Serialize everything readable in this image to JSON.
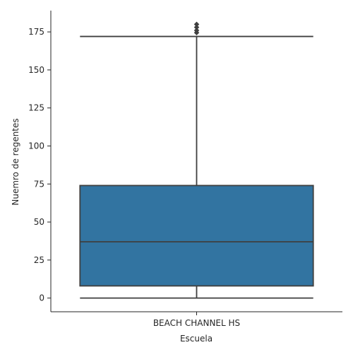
{
  "chart_data": {
    "type": "box",
    "title": "",
    "xlabel": "Escuela",
    "ylabel": "Nuemro de regentes",
    "categories": [
      "BEACH CHANNEL HS"
    ],
    "boxes": [
      {
        "category": "BEACH CHANNEL HS",
        "whisker_low": 0,
        "q1": 8,
        "median": 37,
        "q3": 74,
        "whisker_high": 172,
        "outliers": [
          174.5,
          176,
          178,
          180
        ]
      }
    ],
    "ylim": [
      -9,
      189
    ],
    "yticks": [
      0,
      25,
      50,
      75,
      100,
      125,
      150,
      175
    ],
    "grid": false,
    "box_color": "#3274a1",
    "line_color": "#3f3f3f"
  }
}
